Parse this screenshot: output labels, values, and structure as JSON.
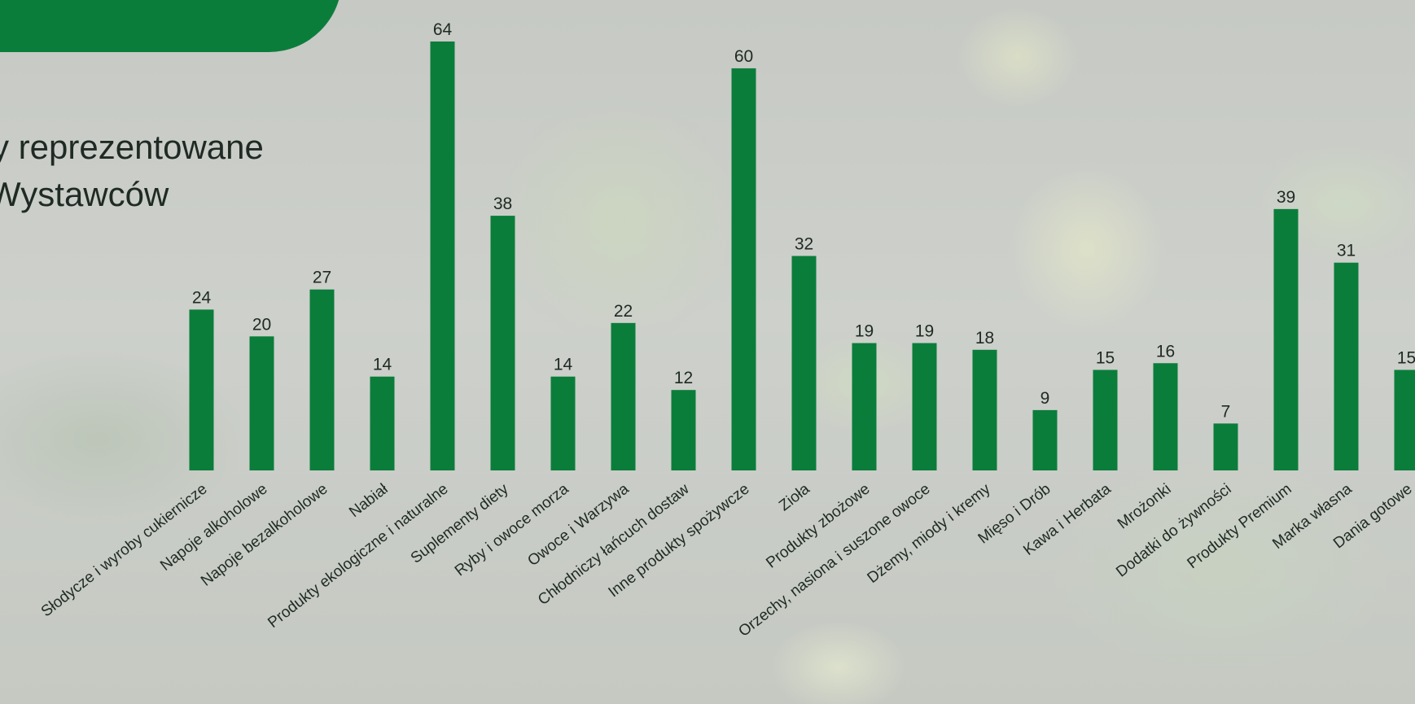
{
  "heading": {
    "line1": "y reprezentowane",
    "line2": "Wystawców"
  },
  "colors": {
    "bar": "#0b7d3b",
    "accent_tab": "#0b7d3b",
    "label_text": "#1f2a24"
  },
  "chart_data": {
    "type": "bar",
    "categories": [
      "Słodycze i wyroby cukiernicze",
      "Napoje alkoholowe",
      "Napoje bezalkoholowe",
      "Nabiał",
      "Produkty ekologiczne i naturalne",
      "Suplementy diety",
      "Ryby i owoce morza",
      "Owoce i Warzywa",
      "Chłodniczy łańcuch dostaw",
      "Inne produkty spożywcze",
      "Zioła",
      "Produkty zbożowe",
      "Orzechy, nasiona i suszone owoce",
      "Dżemy, miody i kremy",
      "Mięso i Drób",
      "Kawa i Herbata",
      "Mrożonki",
      "Dodatki do żywności",
      "Produkty Premium",
      "Marka własna",
      "Dania gotowe"
    ],
    "values": [
      24,
      20,
      27,
      14,
      64,
      38,
      14,
      22,
      12,
      60,
      32,
      19,
      19,
      18,
      9,
      15,
      16,
      7,
      39,
      31,
      15
    ],
    "ylim": [
      0,
      64
    ],
    "grid": false,
    "data_labels": true
  }
}
